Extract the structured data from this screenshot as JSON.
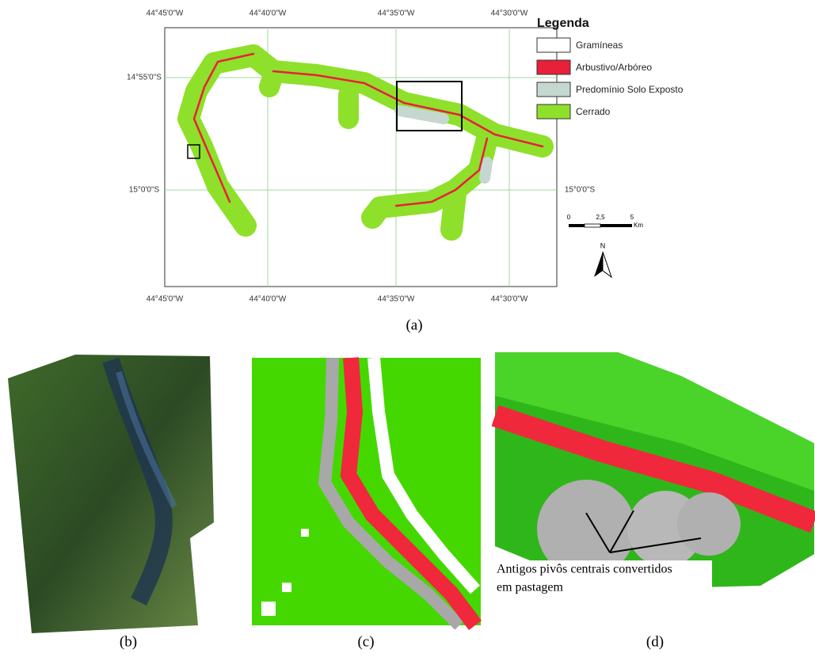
{
  "panel_a": {
    "top_labels": [
      "44°45'0\"W",
      "44°40'0\"W",
      "44°35'0\"W",
      "44°30'0\"W"
    ],
    "bottom_labels": [
      "44°45'0\"W",
      "44°40'0\"W",
      "44°35'0\"W",
      "44°30'0\"W"
    ],
    "left_labels": [
      "14°55'0\"S",
      "15°0'0\"S"
    ],
    "right_labels": [
      "15°0'0\"S"
    ],
    "legend": {
      "title": "Legenda",
      "items": [
        "Gramíneas",
        "Arbustivo/Arbóreo",
        "Predomínio Solo Exposto",
        "Cerrado"
      ]
    },
    "scale": {
      "labels": [
        "0",
        "2,5",
        "5"
      ],
      "unit": "Km"
    },
    "north": "N"
  },
  "captions": [
    "(a)",
    "(b)",
    "(c)",
    "(d)"
  ],
  "panel_d": {
    "annotation": [
      "Antigos pivôs centrais convertidos",
      "em pastagem"
    ]
  }
}
